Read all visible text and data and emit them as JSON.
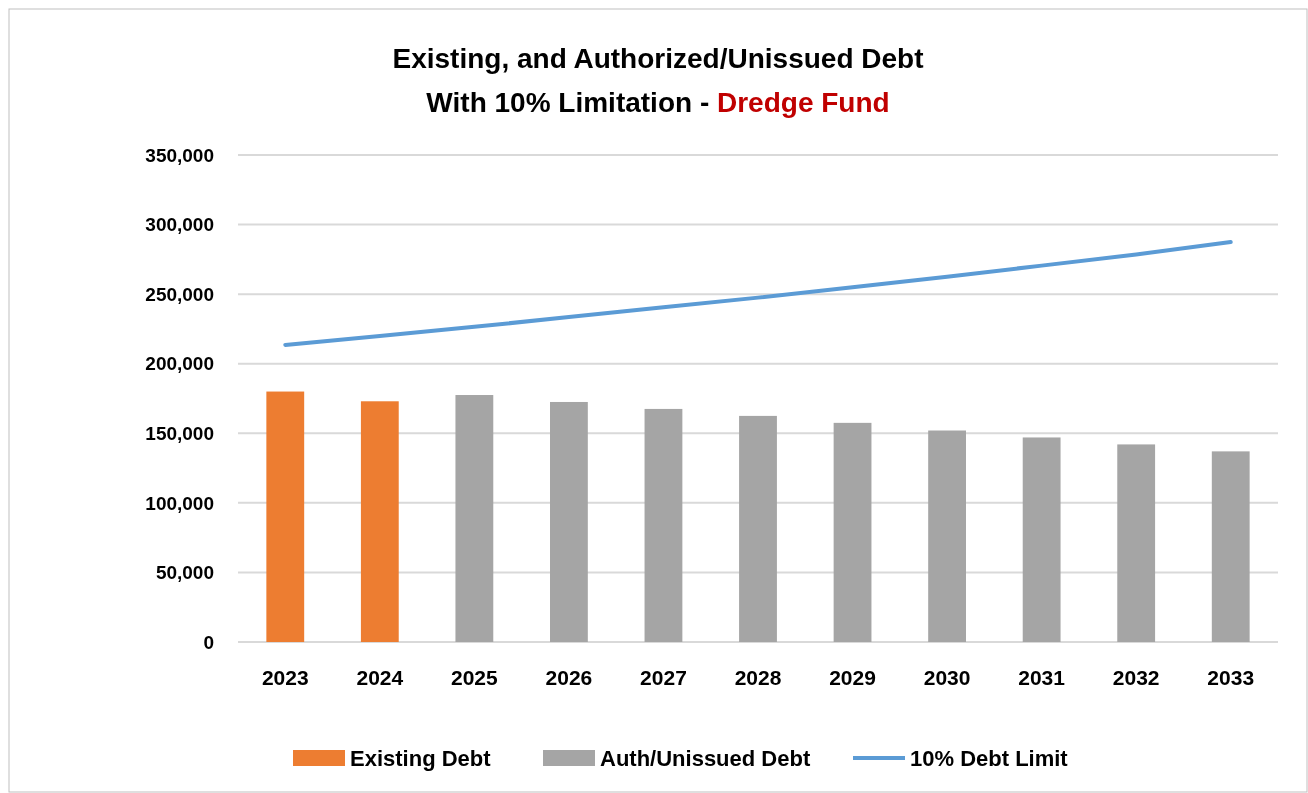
{
  "chart_data": {
    "type": "bar",
    "title": "Existing, and Authorized/Unissued Debt",
    "subtitle": "With 10% Limitation - Dredge Fund",
    "categories": [
      "2023",
      "2024",
      "2025",
      "2026",
      "2027",
      "2028",
      "2029",
      "2030",
      "2031",
      "2032",
      "2033"
    ],
    "series": [
      {
        "name": "Existing Debt",
        "color": "#ed7d31",
        "values": [
          180000,
          173000,
          null,
          null,
          null,
          null,
          null,
          null,
          null,
          null,
          null
        ]
      },
      {
        "name": "Auth/Unissued Debt",
        "color": "#a5a5a5",
        "values": [
          null,
          null,
          177500,
          172500,
          167500,
          162500,
          157500,
          152000,
          147000,
          142000,
          137000
        ]
      },
      {
        "name": "10% Debt Limit",
        "type": "line",
        "color": "#5b9bd5",
        "values": [
          213500,
          220000,
          226500,
          233500,
          240500,
          247500,
          255000,
          262500,
          270500,
          278500,
          287500
        ]
      }
    ],
    "ylim": [
      0,
      350000
    ],
    "yticks": [
      {
        "value": 0,
        "label": "0"
      },
      {
        "value": 50000,
        "label": "50,000"
      },
      {
        "value": 100000,
        "label": "100,000"
      },
      {
        "value": 150000,
        "label": "150,000"
      },
      {
        "value": 200000,
        "label": "200,000"
      },
      {
        "value": 250000,
        "label": "250,000"
      },
      {
        "value": 300000,
        "label": "300,000"
      },
      {
        "value": 350000,
        "label": "350,000"
      }
    ],
    "grid": "y",
    "legend": "bottom"
  }
}
